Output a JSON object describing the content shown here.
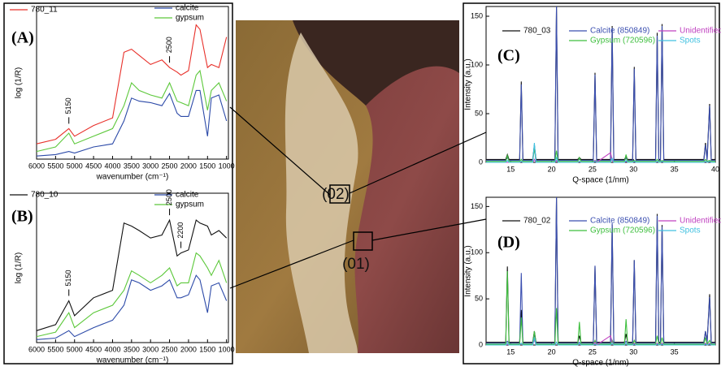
{
  "chart_data": [
    {
      "type": "line",
      "panel_label": "(A)",
      "y_label": "log (1/R)",
      "x_label": "wavenumber (cm⁻¹)",
      "x": [
        6000,
        5500,
        5150,
        5000,
        4500,
        4000,
        3700,
        3500,
        3300,
        3000,
        2700,
        2500,
        2300,
        2200,
        2000,
        1800,
        1700,
        1500,
        1400,
        1200,
        1000
      ],
      "xlim": [
        6000,
        950
      ],
      "xticks": [
        6000,
        5500,
        5000,
        4500,
        4000,
        3500,
        3000,
        2500,
        2000,
        1500,
        1000
      ],
      "ylim": [
        0,
        100
      ],
      "series": [
        {
          "name": "780_11",
          "color": "#e8302a",
          "values": [
            10,
            13,
            20,
            15,
            22,
            27,
            70,
            72,
            68,
            62,
            65,
            60,
            57,
            55,
            58,
            88,
            85,
            60,
            62,
            60,
            80
          ]
        },
        {
          "name": "calcite",
          "color": "#2c4aa8",
          "values": [
            2,
            3,
            5,
            4,
            8,
            10,
            25,
            40,
            38,
            37,
            35,
            43,
            30,
            28,
            28,
            45,
            45,
            15,
            40,
            42,
            25
          ]
        },
        {
          "name": "gypsum",
          "color": "#5cc83a",
          "values": [
            5,
            8,
            17,
            10,
            15,
            20,
            35,
            50,
            45,
            42,
            40,
            50,
            38,
            37,
            35,
            55,
            58,
            32,
            45,
            50,
            38
          ]
        }
      ],
      "annotations": [
        {
          "text": "5150",
          "x": 5150
        },
        {
          "text": "2500",
          "x": 2500
        }
      ]
    },
    {
      "type": "line",
      "panel_label": "(B)",
      "y_label": "log (1/R)",
      "x_label": "wavenumber (cm⁻¹)",
      "x": [
        6000,
        5500,
        5150,
        5000,
        4500,
        4000,
        3700,
        3500,
        3300,
        3000,
        2700,
        2500,
        2300,
        2200,
        2000,
        1800,
        1700,
        1500,
        1400,
        1200,
        1000
      ],
      "xlim": [
        6000,
        950
      ],
      "xticks": [
        6000,
        5500,
        5000,
        4500,
        4000,
        3500,
        3000,
        2500,
        2000,
        1500,
        1000
      ],
      "ylim": [
        0,
        100
      ],
      "series": [
        {
          "name": "780_10",
          "color": "#111111",
          "values": [
            8,
            12,
            28,
            18,
            30,
            35,
            80,
            78,
            75,
            70,
            72,
            82,
            58,
            60,
            62,
            82,
            80,
            78,
            72,
            75,
            70
          ]
        },
        {
          "name": "calcite",
          "color": "#2c4aa8",
          "values": [
            2,
            3,
            8,
            4,
            10,
            15,
            25,
            42,
            40,
            35,
            38,
            42,
            30,
            30,
            32,
            45,
            42,
            20,
            38,
            40,
            28
          ]
        },
        {
          "name": "gypsum",
          "color": "#5cc83a",
          "values": [
            4,
            7,
            20,
            10,
            20,
            25,
            35,
            48,
            45,
            40,
            45,
            50,
            38,
            40,
            40,
            60,
            58,
            50,
            45,
            55,
            40
          ]
        }
      ],
      "annotations": [
        {
          "text": "5150",
          "x": 5150
        },
        {
          "text": "2500",
          "x": 2500
        },
        {
          "text": "2200",
          "x": 2200
        }
      ]
    },
    {
      "type": "line",
      "panel_label": "(C)",
      "y_label": "Intensity (a.u.)",
      "x_label": "Q-space (1/nm)",
      "x": [
        12,
        14.4,
        14.6,
        14.8,
        16.1,
        16.3,
        16.5,
        17.7,
        17.9,
        18.1,
        20.4,
        20.6,
        20.8,
        23.2,
        23.4,
        23.6,
        25.1,
        25.3,
        25.5,
        27.2,
        27.4,
        27.6,
        28.9,
        29.1,
        29.3,
        29.9,
        30.1,
        30.3,
        32.7,
        32.9,
        33.1,
        33.3,
        33.5,
        33.7,
        38.6,
        38.8,
        39.0,
        39.3,
        39.5,
        40
      ],
      "xlim": [
        12,
        40
      ],
      "xticks": [
        15,
        20,
        25,
        30,
        35,
        40
      ],
      "ylim": [
        0,
        160
      ],
      "yticks": [
        0,
        50,
        100,
        150
      ],
      "series": [
        {
          "name": "780_03",
          "color": "#111111",
          "values": [
            3,
            3,
            8,
            3,
            3,
            83,
            3,
            3,
            18,
            3,
            3,
            160,
            3,
            3,
            5,
            3,
            3,
            92,
            3,
            3,
            140,
            3,
            3,
            6,
            3,
            3,
            98,
            3,
            3,
            133,
            3,
            3,
            142,
            3,
            3,
            20,
            3,
            60,
            3,
            3
          ]
        },
        {
          "name": "Calcite (850849)",
          "color": "#3b4fb0",
          "values": [
            2,
            2,
            5,
            2,
            2,
            80,
            2,
            2,
            15,
            2,
            2,
            160,
            2,
            2,
            3,
            2,
            2,
            90,
            2,
            2,
            138,
            2,
            2,
            4,
            2,
            2,
            96,
            2,
            2,
            130,
            2,
            2,
            140,
            2,
            2,
            18,
            2,
            58,
            2,
            2
          ]
        },
        {
          "name": "Gypsum (720596)",
          "color": "#3fbf3f",
          "values": [
            1,
            1,
            7,
            1,
            1,
            3,
            1,
            1,
            15,
            1,
            1,
            12,
            1,
            1,
            5,
            1,
            1,
            2,
            1,
            1,
            3,
            1,
            1,
            8,
            1,
            1,
            2,
            1,
            1,
            3,
            1,
            1,
            2,
            1,
            1,
            3,
            1,
            2,
            1,
            1
          ]
        },
        {
          "name": "Unidentified",
          "color": "#c040c0",
          "values": [
            0,
            0,
            0,
            0,
            0,
            1,
            0,
            0,
            3,
            0,
            0,
            2,
            0,
            0,
            1,
            0,
            0,
            2,
            0,
            10,
            2,
            0,
            0,
            1,
            0,
            0,
            1,
            0,
            0,
            1,
            0,
            0,
            1,
            0,
            0,
            1,
            0,
            1,
            0,
            0
          ]
        },
        {
          "name": "Spots",
          "color": "#40c0e0",
          "values": [
            0,
            0,
            2,
            0,
            0,
            1,
            0,
            0,
            20,
            0,
            0,
            5,
            0,
            0,
            1,
            0,
            0,
            1,
            0,
            0,
            4,
            0,
            0,
            2,
            0,
            0,
            1,
            0,
            0,
            1,
            0,
            0,
            1,
            0,
            0,
            1,
            0,
            1,
            0,
            0
          ]
        }
      ]
    },
    {
      "type": "line",
      "panel_label": "(D)",
      "y_label": "Intensity (a.u.)",
      "x_label": "Q-space (1/nm)",
      "x": [
        12,
        14.4,
        14.6,
        14.8,
        16.1,
        16.3,
        16.5,
        17.7,
        17.9,
        18.1,
        20.4,
        20.6,
        20.8,
        23.2,
        23.4,
        23.6,
        25.1,
        25.3,
        25.5,
        27.2,
        27.4,
        27.6,
        28.9,
        29.1,
        29.3,
        29.9,
        30.1,
        30.3,
        32.7,
        32.9,
        33.1,
        33.3,
        33.5,
        33.7,
        38.6,
        38.8,
        39.0,
        39.3,
        39.5,
        40
      ],
      "xlim": [
        12,
        40
      ],
      "xticks": [
        15,
        20,
        25,
        30,
        35
      ],
      "ylim": [
        0,
        160
      ],
      "yticks": [
        0,
        50,
        100,
        150
      ],
      "series": [
        {
          "name": "780_02",
          "color": "#111111",
          "values": [
            3,
            3,
            85,
            3,
            3,
            38,
            3,
            3,
            15,
            3,
            3,
            160,
            3,
            3,
            10,
            3,
            3,
            85,
            3,
            3,
            130,
            3,
            3,
            12,
            3,
            3,
            92,
            3,
            3,
            142,
            3,
            3,
            130,
            3,
            3,
            15,
            3,
            55,
            3,
            3
          ]
        },
        {
          "name": "Calcite (850849)",
          "color": "#3b4fb0",
          "values": [
            2,
            2,
            4,
            2,
            2,
            78,
            2,
            2,
            12,
            2,
            2,
            160,
            2,
            2,
            3,
            2,
            2,
            86,
            2,
            2,
            132,
            2,
            2,
            4,
            2,
            2,
            92,
            2,
            2,
            140,
            2,
            2,
            128,
            2,
            2,
            15,
            2,
            52,
            2,
            2
          ]
        },
        {
          "name": "Gypsum (720596)",
          "color": "#3fbf3f",
          "values": [
            1,
            1,
            80,
            1,
            1,
            30,
            1,
            1,
            15,
            1,
            1,
            40,
            1,
            1,
            25,
            1,
            1,
            5,
            1,
            1,
            5,
            1,
            1,
            28,
            1,
            1,
            5,
            1,
            1,
            10,
            1,
            1,
            8,
            1,
            1,
            8,
            1,
            5,
            1,
            1
          ]
        },
        {
          "name": "Unidentified",
          "color": "#c040c0",
          "values": [
            0,
            0,
            1,
            0,
            0,
            2,
            0,
            0,
            6,
            0,
            0,
            3,
            0,
            0,
            2,
            0,
            0,
            3,
            0,
            10,
            3,
            0,
            0,
            2,
            0,
            0,
            2,
            0,
            0,
            2,
            0,
            0,
            2,
            0,
            0,
            2,
            0,
            2,
            0,
            0
          ]
        },
        {
          "name": "Spots",
          "color": "#40c0e0",
          "values": [
            0,
            0,
            2,
            0,
            0,
            2,
            0,
            0,
            8,
            0,
            0,
            3,
            0,
            0,
            2,
            0,
            0,
            1,
            0,
            0,
            2,
            0,
            0,
            2,
            0,
            0,
            1,
            0,
            0,
            1,
            0,
            0,
            1,
            0,
            0,
            1,
            0,
            1,
            0,
            0
          ]
        }
      ]
    }
  ],
  "photo": {
    "labels": [
      "(02)",
      "(01)"
    ]
  }
}
